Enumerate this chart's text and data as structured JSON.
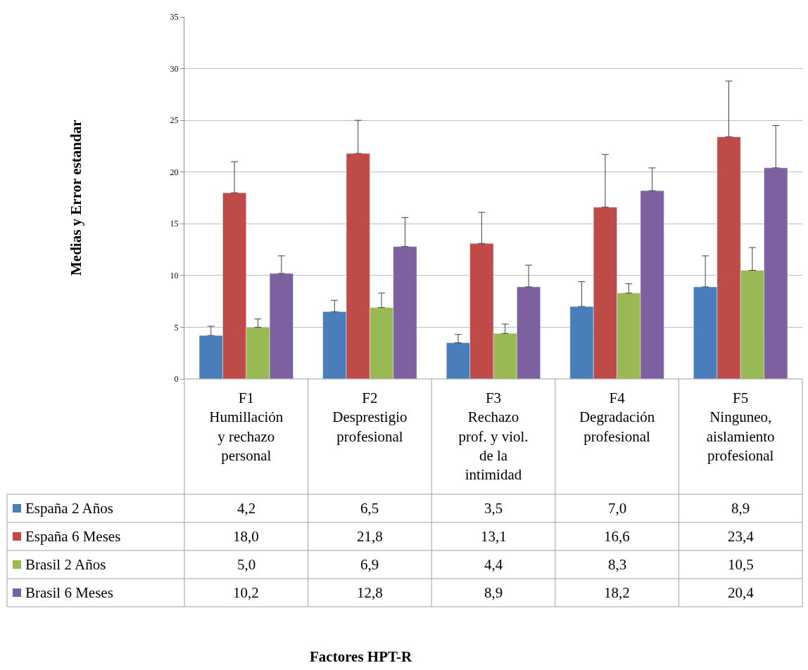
{
  "chart_data": {
    "type": "bar",
    "annotations": [
      "Medias y Error estandar",
      "Factores HPT-R"
    ],
    "categories": [
      "F1\nHumillación\ny rechazo\npersonal",
      "F2\nDesprestigio\nprofesional",
      "F3\nRechazo\nprof. y viol.\nde la\nintimidad",
      "F4\nDegradación\nprofesional",
      "F5\nNinguneo,\naislamiento\nprofesional"
    ],
    "series": [
      {
        "name": "España 2 Años",
        "color": "#4a7ebb",
        "values": [
          4.2,
          6.5,
          3.5,
          7.0,
          8.9
        ],
        "value_labels": [
          "4,2",
          "6,5",
          "3,5",
          "7,0",
          "8,9"
        ],
        "errors": [
          [
            4.2,
            5.1
          ],
          [
            6.5,
            7.6
          ],
          [
            3.5,
            4.3
          ],
          [
            7.0,
            9.4
          ],
          [
            8.9,
            11.9
          ]
        ]
      },
      {
        "name": "España 6 Meses",
        "color": "#be4b48",
        "values": [
          18.0,
          21.8,
          13.1,
          16.6,
          23.4
        ],
        "value_labels": [
          "18,0",
          "21,8",
          "13,1",
          "16,6",
          "23,4"
        ],
        "errors": [
          [
            18.0,
            21.0
          ],
          [
            21.8,
            25.0
          ],
          [
            13.1,
            16.1
          ],
          [
            16.6,
            21.7
          ],
          [
            23.4,
            28.8
          ]
        ]
      },
      {
        "name": "Brasil 2 Años",
        "color": "#98b954",
        "values": [
          5.0,
          6.9,
          4.4,
          8.3,
          10.5
        ],
        "value_labels": [
          "5,0",
          "6,9",
          "4,4",
          "8,3",
          "10,5"
        ],
        "errors": [
          [
            5.0,
            5.8
          ],
          [
            6.9,
            8.3
          ],
          [
            4.4,
            5.3
          ],
          [
            8.3,
            9.2
          ],
          [
            10.5,
            12.7
          ]
        ]
      },
      {
        "name": "Brasil 6 Meses",
        "color": "#7d60a0",
        "values": [
          10.2,
          12.8,
          8.9,
          18.2,
          20.4
        ],
        "value_labels": [
          "10,2",
          "12,8",
          "8,9",
          "18,2",
          "20,4"
        ],
        "errors": [
          [
            10.2,
            11.9
          ],
          [
            12.8,
            15.6
          ],
          [
            8.9,
            11.0
          ],
          [
            18.2,
            20.4
          ],
          [
            20.4,
            24.5
          ]
        ]
      }
    ],
    "ylim": [
      0,
      35
    ],
    "yticks": [
      0,
      5,
      10,
      15,
      20,
      25,
      30,
      35
    ],
    "grid": "y",
    "legend": "bottom left"
  }
}
